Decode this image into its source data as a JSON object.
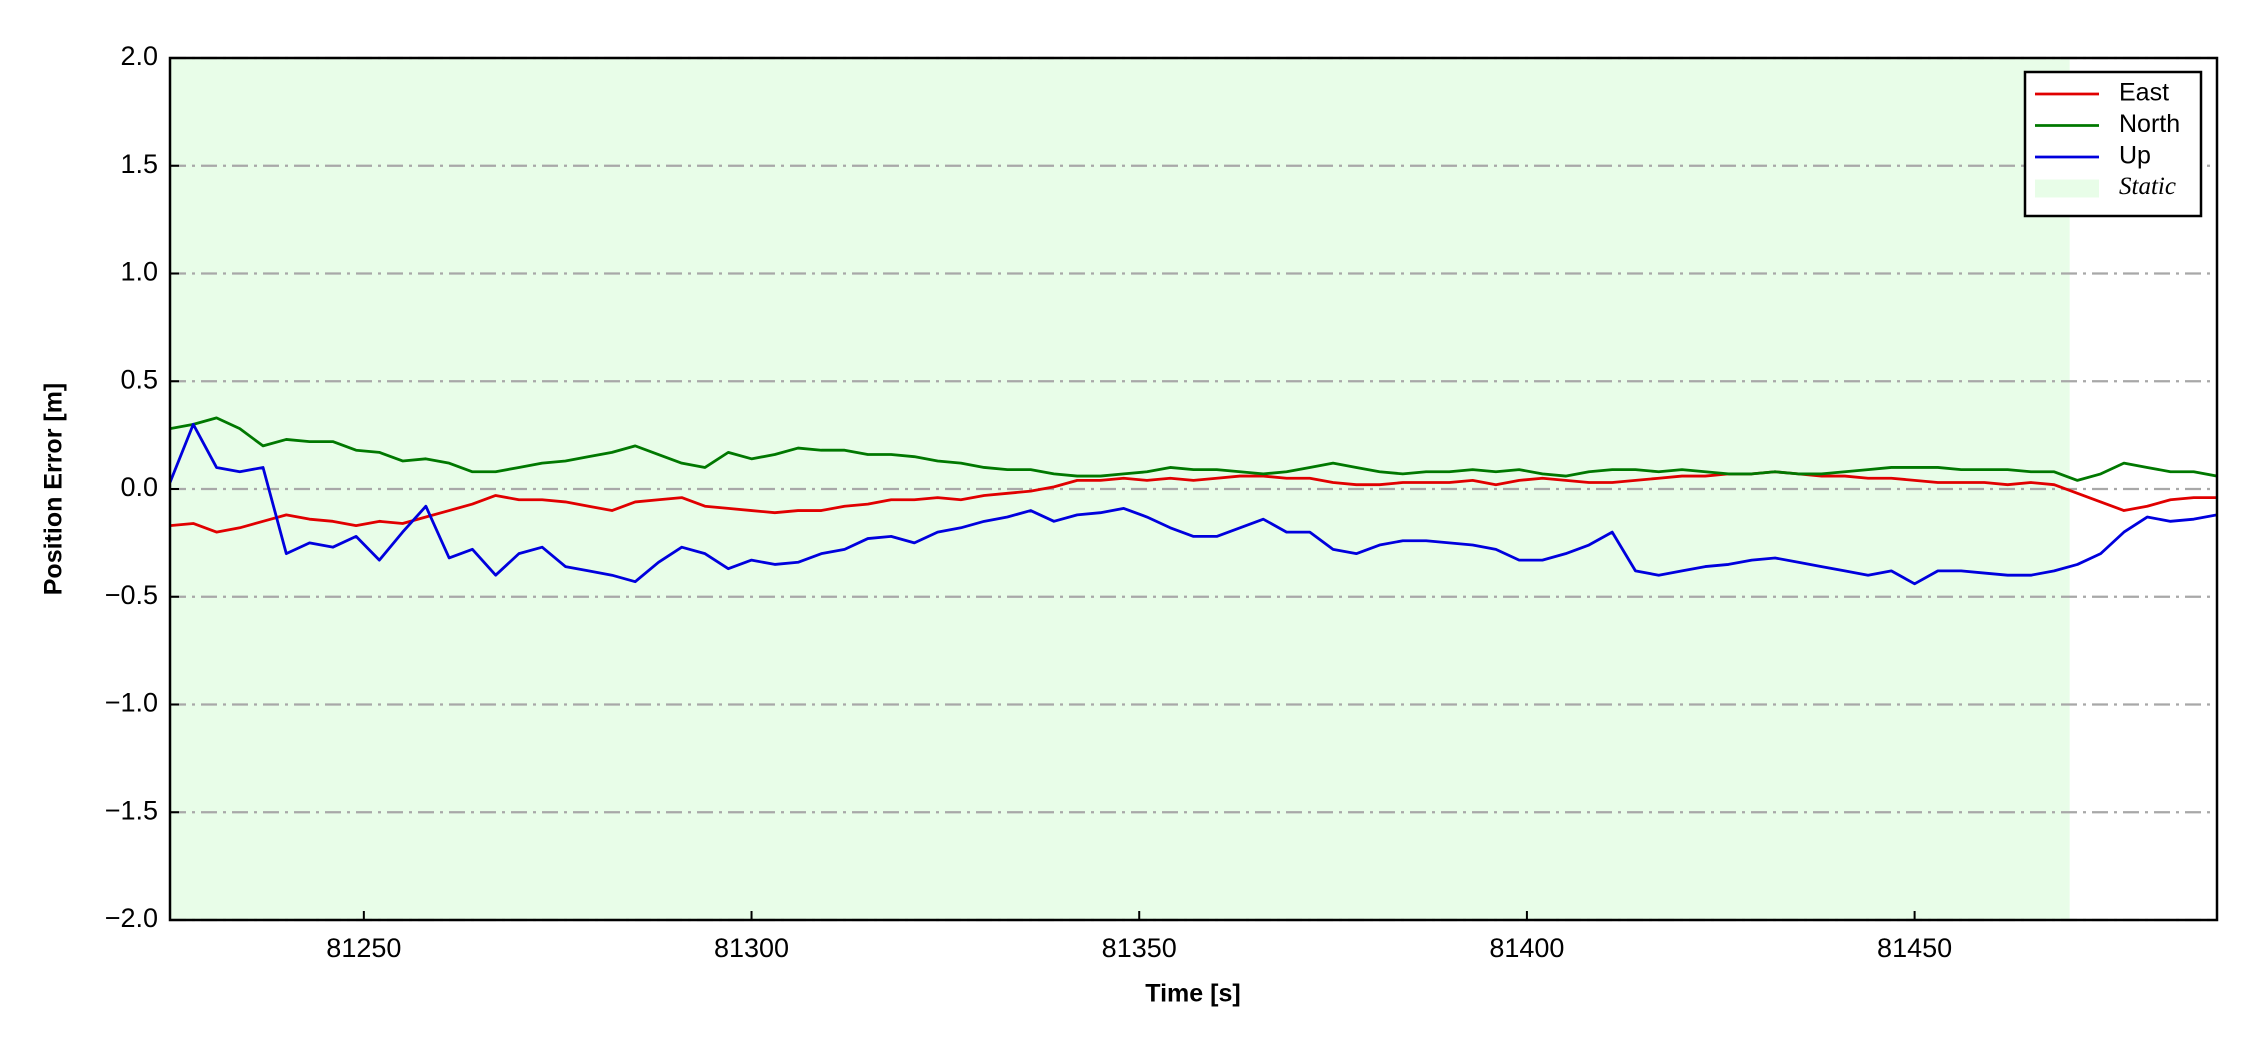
{
  "chart_data": {
    "type": "line",
    "xlabel": "Time [s]",
    "ylabel": "Position Error [m]",
    "x": [
      81225,
      81228,
      81231,
      81234,
      81237,
      81240,
      81243,
      81246,
      81249,
      81252,
      81255,
      81258,
      81261,
      81264,
      81267,
      81270,
      81273,
      81276,
      81279,
      81282,
      81285,
      81288,
      81291,
      81294,
      81297,
      81300,
      81303,
      81306,
      81309,
      81312,
      81315,
      81318,
      81321,
      81324,
      81327,
      81330,
      81333,
      81336,
      81339,
      81342,
      81345,
      81348,
      81351,
      81354,
      81357,
      81360,
      81363,
      81366,
      81369,
      81372,
      81375,
      81378,
      81381,
      81384,
      81387,
      81390,
      81393,
      81396,
      81399,
      81402,
      81405,
      81408,
      81411,
      81414,
      81417,
      81420,
      81423,
      81426,
      81429,
      81432,
      81435,
      81438,
      81441,
      81444,
      81447,
      81450,
      81453,
      81456,
      81459,
      81462,
      81465,
      81468,
      81471,
      81474,
      81477,
      81480,
      81483,
      81486,
      81489
    ],
    "series": [
      {
        "name": "East",
        "color": "#e00000",
        "values": [
          -0.17,
          -0.16,
          -0.2,
          -0.18,
          -0.15,
          -0.12,
          -0.14,
          -0.15,
          -0.17,
          -0.15,
          -0.16,
          -0.13,
          -0.1,
          -0.07,
          -0.03,
          -0.05,
          -0.05,
          -0.06,
          -0.08,
          -0.1,
          -0.06,
          -0.05,
          -0.04,
          -0.08,
          -0.09,
          -0.1,
          -0.11,
          -0.1,
          -0.1,
          -0.08,
          -0.07,
          -0.05,
          -0.05,
          -0.04,
          -0.05,
          -0.03,
          -0.02,
          -0.01,
          0.01,
          0.04,
          0.04,
          0.05,
          0.04,
          0.05,
          0.04,
          0.05,
          0.06,
          0.06,
          0.05,
          0.05,
          0.03,
          0.02,
          0.02,
          0.03,
          0.03,
          0.03,
          0.04,
          0.02,
          0.04,
          0.05,
          0.04,
          0.03,
          0.03,
          0.04,
          0.05,
          0.06,
          0.06,
          0.07,
          0.07,
          0.08,
          0.07,
          0.06,
          0.06,
          0.05,
          0.05,
          0.04,
          0.03,
          0.03,
          0.03,
          0.02,
          0.03,
          0.02,
          -0.02,
          -0.06,
          -0.1,
          -0.08,
          -0.05,
          -0.04,
          -0.04
        ]
      },
      {
        "name": "North",
        "color": "#007800",
        "values": [
          0.28,
          0.3,
          0.33,
          0.28,
          0.2,
          0.23,
          0.22,
          0.22,
          0.18,
          0.17,
          0.13,
          0.14,
          0.12,
          0.08,
          0.08,
          0.1,
          0.12,
          0.13,
          0.15,
          0.17,
          0.2,
          0.16,
          0.12,
          0.1,
          0.17,
          0.14,
          0.16,
          0.19,
          0.18,
          0.18,
          0.16,
          0.16,
          0.15,
          0.13,
          0.12,
          0.1,
          0.09,
          0.09,
          0.07,
          0.06,
          0.06,
          0.07,
          0.08,
          0.1,
          0.09,
          0.09,
          0.08,
          0.07,
          0.08,
          0.1,
          0.12,
          0.1,
          0.08,
          0.07,
          0.08,
          0.08,
          0.09,
          0.08,
          0.09,
          0.07,
          0.06,
          0.08,
          0.09,
          0.09,
          0.08,
          0.09,
          0.08,
          0.07,
          0.07,
          0.08,
          0.07,
          0.07,
          0.08,
          0.09,
          0.1,
          0.1,
          0.1,
          0.09,
          0.09,
          0.09,
          0.08,
          0.08,
          0.04,
          0.07,
          0.12,
          0.1,
          0.08,
          0.08,
          0.06
        ]
      },
      {
        "name": "Up",
        "color": "#0000dd",
        "values": [
          0.03,
          0.3,
          0.1,
          0.08,
          0.1,
          -0.3,
          -0.25,
          -0.27,
          -0.22,
          -0.33,
          -0.2,
          -0.08,
          -0.32,
          -0.28,
          -0.4,
          -0.3,
          -0.27,
          -0.36,
          -0.38,
          -0.4,
          -0.43,
          -0.34,
          -0.27,
          -0.3,
          -0.37,
          -0.33,
          -0.35,
          -0.34,
          -0.3,
          -0.28,
          -0.23,
          -0.22,
          -0.25,
          -0.2,
          -0.18,
          -0.15,
          -0.13,
          -0.1,
          -0.15,
          -0.12,
          -0.11,
          -0.09,
          -0.13,
          -0.18,
          -0.22,
          -0.22,
          -0.18,
          -0.14,
          -0.2,
          -0.2,
          -0.28,
          -0.3,
          -0.26,
          -0.24,
          -0.24,
          -0.25,
          -0.26,
          -0.28,
          -0.33,
          -0.33,
          -0.3,
          -0.26,
          -0.2,
          -0.38,
          -0.4,
          -0.38,
          -0.36,
          -0.35,
          -0.33,
          -0.32,
          -0.34,
          -0.36,
          -0.38,
          -0.4,
          -0.38,
          -0.44,
          -0.38,
          -0.38,
          -0.39,
          -0.4,
          -0.4,
          -0.38,
          -0.35,
          -0.3,
          -0.2,
          -0.13,
          -0.15,
          -0.14,
          -0.12
        ]
      }
    ],
    "spans": [
      {
        "name": "Static",
        "color": "#e8fde8",
        "start": 81225,
        "end": 81470
      }
    ],
    "xlim": [
      81225,
      81489
    ],
    "ylim": [
      -2.0,
      2.0
    ],
    "xticks": [
      81250,
      81300,
      81350,
      81400,
      81450
    ],
    "yticks": [
      {
        "value": -2.0,
        "label": "−2.0"
      },
      {
        "value": -1.5,
        "label": "−1.5"
      },
      {
        "value": -1.0,
        "label": "−1.0"
      },
      {
        "value": -0.5,
        "label": "−0.5"
      },
      {
        "value": 0.0,
        "label": "0.0"
      },
      {
        "value": 0.5,
        "label": "0.5"
      },
      {
        "value": 1.0,
        "label": "1.0"
      },
      {
        "value": 1.5,
        "label": "1.5"
      },
      {
        "value": 2.0,
        "label": "2.0"
      }
    ],
    "grid": true,
    "legend": "upper right"
  }
}
